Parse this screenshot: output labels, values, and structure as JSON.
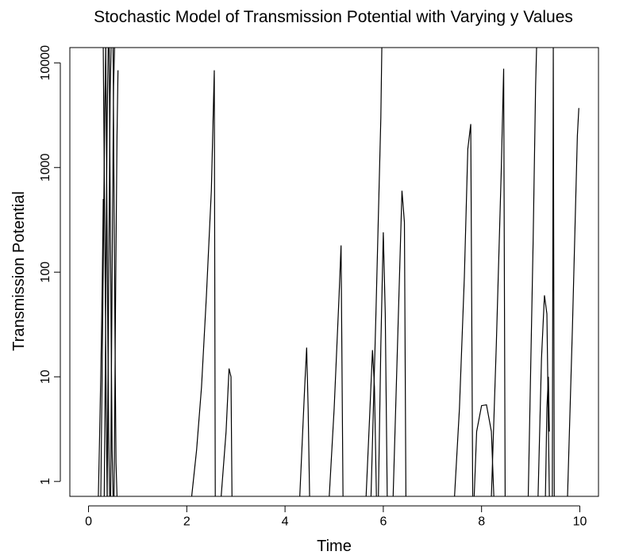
{
  "chart_data": {
    "type": "line",
    "title": "Stochastic Model of Transmission Potential with Varying  y  Values",
    "xlabel": "Time",
    "ylabel": "Transmission Potential",
    "x_ticks": [
      0,
      2,
      4,
      6,
      8,
      10
    ],
    "y_ticks": [
      1,
      10,
      100,
      1000,
      10000
    ],
    "y_tick_labels": [
      "1",
      "10",
      "100",
      "1000",
      "10000"
    ],
    "xlim": [
      -0.38,
      10.38
    ],
    "ylim": [
      0.72,
      14000
    ],
    "y_scale": "log",
    "grid": false,
    "line_color": "#000000",
    "series": [
      {
        "x": [
          0.2,
          0.22,
          0.24,
          0.26,
          0.28,
          0.3
        ],
        "y": [
          0.72,
          2,
          6,
          20,
          80,
          500
        ]
      },
      {
        "x": [
          0.25,
          0.27,
          0.29,
          0.31,
          0.33,
          0.35
        ],
        "y": [
          0.72,
          5,
          40,
          400,
          3000,
          14000
        ]
      },
      {
        "x": [
          0.3,
          0.32,
          0.34,
          0.36,
          0.38
        ],
        "y": [
          14000,
          1000,
          80,
          5,
          0.72
        ]
      },
      {
        "x": [
          0.32,
          0.34,
          0.36,
          0.38,
          0.4
        ],
        "y": [
          0.72,
          10,
          200,
          3000,
          14000
        ]
      },
      {
        "x": [
          0.35,
          0.37,
          0.39,
          0.41,
          0.43
        ],
        "y": [
          14000,
          800,
          40,
          3,
          0.72
        ]
      },
      {
        "x": [
          0.38,
          0.4,
          0.42,
          0.44,
          0.46
        ],
        "y": [
          0.72,
          15,
          300,
          5000,
          14000
        ]
      },
      {
        "x": [
          0.42,
          0.44,
          0.46,
          0.48,
          0.5
        ],
        "y": [
          14000,
          600,
          30,
          2,
          0.72
        ]
      },
      {
        "x": [
          0.45,
          0.47,
          0.49,
          0.51,
          0.53
        ],
        "y": [
          0.72,
          20,
          400,
          6000,
          14000
        ]
      },
      {
        "x": [
          0.5,
          0.52,
          0.54,
          0.56,
          0.58
        ],
        "y": [
          14000,
          500,
          20,
          1.5,
          0.72
        ]
      },
      {
        "x": [
          0.52,
          0.55,
          0.58,
          0.6
        ],
        "y": [
          0.72,
          50,
          2000,
          8500
        ]
      },
      {
        "x": [
          2.1,
          2.2,
          2.3,
          2.4,
          2.5,
          2.56,
          2.58
        ],
        "y": [
          0.72,
          2,
          8,
          60,
          600,
          8500,
          0.72
        ]
      },
      {
        "x": [
          2.7,
          2.8,
          2.86,
          2.9,
          2.92
        ],
        "y": [
          0.72,
          3,
          12,
          10,
          0.72
        ]
      },
      {
        "x": [
          4.3,
          4.4,
          4.44,
          4.47,
          4.5
        ],
        "y": [
          0.72,
          8,
          19,
          5,
          0.72
        ]
      },
      {
        "x": [
          4.9,
          5.0,
          5.1,
          5.14,
          5.18
        ],
        "y": [
          0.72,
          5,
          60,
          180,
          0.72
        ]
      },
      {
        "x": [
          5.65,
          5.72,
          5.78,
          5.82,
          5.86
        ],
        "y": [
          0.72,
          4,
          18,
          8,
          0.72
        ]
      },
      {
        "x": [
          5.75,
          5.85,
          5.95,
          5.97
        ],
        "y": [
          0.72,
          40,
          3000,
          14000
        ]
      },
      {
        "x": [
          5.9,
          5.95,
          6.0,
          6.04,
          6.08
        ],
        "y": [
          0.72,
          20,
          240,
          40,
          0.72
        ]
      },
      {
        "x": [
          6.2,
          6.3,
          6.38,
          6.43,
          6.46
        ],
        "y": [
          0.72,
          30,
          600,
          300,
          0.72
        ]
      },
      {
        "x": [
          7.45,
          7.55,
          7.65,
          7.72,
          7.78,
          7.82
        ],
        "y": [
          0.72,
          5,
          90,
          1500,
          2600,
          0.72
        ]
      },
      {
        "x": [
          7.85,
          7.9,
          8.0,
          8.1,
          8.2,
          8.25
        ],
        "y": [
          0.72,
          3,
          5.3,
          5.4,
          3,
          0.72
        ]
      },
      {
        "x": [
          8.2,
          8.3,
          8.4,
          8.45,
          8.48
        ],
        "y": [
          0.72,
          20,
          900,
          8800,
          0.72
        ]
      },
      {
        "x": [
          8.95,
          9.05,
          9.1,
          9.12
        ],
        "y": [
          0.72,
          200,
          6000,
          14000
        ]
      },
      {
        "x": [
          9.15,
          9.22,
          9.28,
          9.33,
          9.38
        ],
        "y": [
          0.72,
          15,
          60,
          40,
          0.72
        ]
      },
      {
        "x": [
          9.3,
          9.33,
          9.36,
          9.38
        ],
        "y": [
          0.72,
          5,
          10,
          3
        ]
      },
      {
        "x": [
          9.44,
          9.46,
          9.48
        ],
        "y": [
          0.72,
          14000,
          0.72
        ]
      },
      {
        "x": [
          9.75,
          9.85,
          9.95,
          9.98
        ],
        "y": [
          0.72,
          30,
          2000,
          3700
        ]
      }
    ]
  }
}
